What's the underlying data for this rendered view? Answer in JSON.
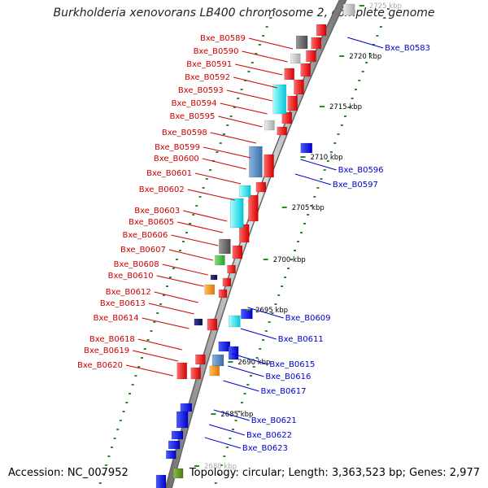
{
  "title": "Burkholderia xenovorans LB400 chromosome 2, complete genome",
  "footer": {
    "accession": "Accession: NC_007952",
    "topology": "Topology: circular; Length: 3,363,523 bp; Genes: 2,977"
  },
  "ticks": [
    "2725 kbp",
    "2720 kbp",
    "2715 kbp",
    "2710 kbp",
    "2705 kbp",
    "2700 kbp",
    "2695 kbp",
    "2690 kbp",
    "2685 kbp",
    "2680 kbp"
  ],
  "left_labels": [
    "Bxe_B0589",
    "Bxe_B0590",
    "Bxe_B0591",
    "Bxe_B0592",
    "Bxe_B0593",
    "Bxe_B0594",
    "Bxe_B0595",
    "Bxe_B0598",
    "Bxe_B0599",
    "Bxe_B0600",
    "Bxe_B0601",
    "Bxe_B0602",
    "Bxe_B0603",
    "Bxe_B0605",
    "Bxe_B0606",
    "Bxe_B0607",
    "Bxe_B0608",
    "Bxe_B0610",
    "Bxe_B0612",
    "Bxe_B0613",
    "Bxe_B0614",
    "Bxe_B0618",
    "Bxe_B0619",
    "Bxe_B0620"
  ],
  "right_labels": [
    "Bxe_B0583",
    "Bxe_B0596",
    "Bxe_B0597",
    "Bxe_B0609",
    "Bxe_B0611",
    "Bxe_B0615",
    "Bxe_B0616",
    "Bxe_B0617",
    "Bxe_B0621",
    "Bxe_B0622",
    "Bxe_B0623"
  ],
  "colors": {
    "left_label": "#cc0000",
    "right_label": "#0000cc",
    "forward_gene": "#ff0000",
    "reverse_gene": "#0000ff",
    "tick_dots": "#2a8a2a",
    "backbone": "#909090"
  }
}
